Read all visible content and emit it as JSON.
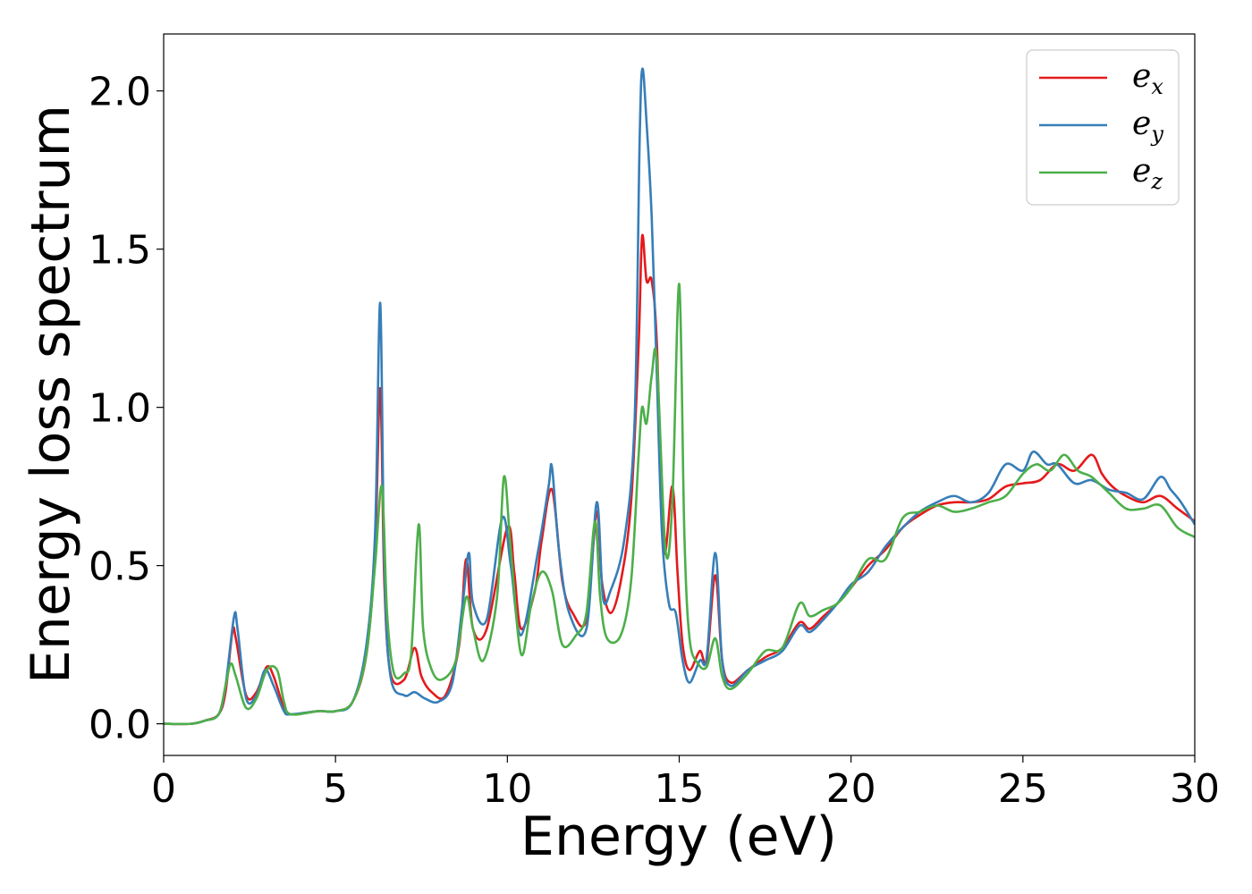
{
  "chart_data": {
    "type": "line",
    "xlabel": "Energy (eV)",
    "ylabel": "Energy loss spectrum",
    "xlim": [
      0,
      30
    ],
    "ylim": [
      -0.1,
      2.18
    ],
    "xticks": [
      0,
      5,
      10,
      15,
      20,
      25,
      30
    ],
    "xtick_labels": [
      "0",
      "5",
      "10",
      "15",
      "20",
      "25",
      "30"
    ],
    "yticks": [
      0.0,
      0.5,
      1.0,
      1.5,
      2.0
    ],
    "ytick_labels": [
      "0.0",
      "0.5",
      "1.0",
      "1.5",
      "2.0"
    ],
    "grid": false,
    "legend_position": "top-right",
    "series": [
      {
        "name": "e_x",
        "base": "e",
        "sub": "x",
        "color": "#e41a1c",
        "points": [
          [
            0,
            0
          ],
          [
            0.8,
            0
          ],
          [
            1.2,
            0.01
          ],
          [
            1.6,
            0.03
          ],
          [
            1.8,
            0.1
          ],
          [
            2.0,
            0.29
          ],
          [
            2.1,
            0.27
          ],
          [
            2.4,
            0.09
          ],
          [
            2.7,
            0.1
          ],
          [
            3.0,
            0.18
          ],
          [
            3.2,
            0.15
          ],
          [
            3.5,
            0.05
          ],
          [
            3.7,
            0.03
          ],
          [
            4.5,
            0.04
          ],
          [
            5.0,
            0.04
          ],
          [
            5.5,
            0.07
          ],
          [
            5.9,
            0.22
          ],
          [
            6.15,
            0.55
          ],
          [
            6.3,
            1.06
          ],
          [
            6.42,
            0.45
          ],
          [
            6.6,
            0.16
          ],
          [
            7.0,
            0.14
          ],
          [
            7.3,
            0.24
          ],
          [
            7.5,
            0.15
          ],
          [
            7.8,
            0.1
          ],
          [
            8.2,
            0.09
          ],
          [
            8.6,
            0.25
          ],
          [
            8.8,
            0.52
          ],
          [
            9.0,
            0.3
          ],
          [
            9.4,
            0.3
          ],
          [
            10.0,
            0.62
          ],
          [
            10.2,
            0.48
          ],
          [
            10.4,
            0.3
          ],
          [
            10.8,
            0.42
          ],
          [
            11.0,
            0.58
          ],
          [
            11.3,
            0.74
          ],
          [
            11.6,
            0.45
          ],
          [
            11.9,
            0.35
          ],
          [
            12.3,
            0.33
          ],
          [
            12.6,
            0.67
          ],
          [
            12.75,
            0.45
          ],
          [
            13.0,
            0.35
          ],
          [
            13.3,
            0.45
          ],
          [
            13.6,
            0.7
          ],
          [
            13.82,
            1.2
          ],
          [
            13.92,
            1.54
          ],
          [
            14.05,
            1.4
          ],
          [
            14.2,
            1.4
          ],
          [
            14.35,
            1.2
          ],
          [
            14.55,
            0.55
          ],
          [
            14.8,
            0.75
          ],
          [
            14.95,
            0.48
          ],
          [
            15.1,
            0.25
          ],
          [
            15.3,
            0.17
          ],
          [
            15.6,
            0.23
          ],
          [
            15.8,
            0.2
          ],
          [
            16.05,
            0.47
          ],
          [
            16.25,
            0.2
          ],
          [
            16.5,
            0.13
          ],
          [
            17.0,
            0.17
          ],
          [
            17.5,
            0.21
          ],
          [
            18.0,
            0.24
          ],
          [
            18.5,
            0.32
          ],
          [
            18.8,
            0.3
          ],
          [
            19.2,
            0.34
          ],
          [
            19.6,
            0.38
          ],
          [
            20.0,
            0.43
          ],
          [
            20.5,
            0.5
          ],
          [
            21.0,
            0.55
          ],
          [
            21.5,
            0.62
          ],
          [
            22.0,
            0.66
          ],
          [
            22.5,
            0.69
          ],
          [
            23.0,
            0.7
          ],
          [
            23.5,
            0.7
          ],
          [
            24.0,
            0.71
          ],
          [
            24.5,
            0.75
          ],
          [
            25.0,
            0.76
          ],
          [
            25.5,
            0.77
          ],
          [
            26.0,
            0.82
          ],
          [
            26.5,
            0.8
          ],
          [
            27.0,
            0.85
          ],
          [
            27.3,
            0.79
          ],
          [
            27.6,
            0.75
          ],
          [
            28.0,
            0.72
          ],
          [
            28.5,
            0.7
          ],
          [
            29.0,
            0.72
          ],
          [
            29.5,
            0.68
          ],
          [
            30.0,
            0.64
          ]
        ]
      },
      {
        "name": "e_y",
        "base": "e",
        "sub": "y",
        "color": "#377eb8",
        "points": [
          [
            0,
            0
          ],
          [
            0.8,
            0
          ],
          [
            1.2,
            0.01
          ],
          [
            1.6,
            0.03
          ],
          [
            1.8,
            0.12
          ],
          [
            2.05,
            0.34
          ],
          [
            2.15,
            0.3
          ],
          [
            2.4,
            0.08
          ],
          [
            2.7,
            0.09
          ],
          [
            2.95,
            0.17
          ],
          [
            3.2,
            0.12
          ],
          [
            3.5,
            0.04
          ],
          [
            3.7,
            0.03
          ],
          [
            4.5,
            0.04
          ],
          [
            5.0,
            0.04
          ],
          [
            5.5,
            0.07
          ],
          [
            5.9,
            0.25
          ],
          [
            6.15,
            0.6
          ],
          [
            6.3,
            1.33
          ],
          [
            6.42,
            0.5
          ],
          [
            6.6,
            0.15
          ],
          [
            7.0,
            0.09
          ],
          [
            7.3,
            0.1
          ],
          [
            7.6,
            0.08
          ],
          [
            8.0,
            0.07
          ],
          [
            8.4,
            0.13
          ],
          [
            8.7,
            0.38
          ],
          [
            8.88,
            0.54
          ],
          [
            9.0,
            0.38
          ],
          [
            9.4,
            0.33
          ],
          [
            9.85,
            0.65
          ],
          [
            10.1,
            0.5
          ],
          [
            10.4,
            0.28
          ],
          [
            10.9,
            0.55
          ],
          [
            11.2,
            0.75
          ],
          [
            11.3,
            0.81
          ],
          [
            11.5,
            0.55
          ],
          [
            11.8,
            0.35
          ],
          [
            12.3,
            0.3
          ],
          [
            12.6,
            0.7
          ],
          [
            12.78,
            0.4
          ],
          [
            13.0,
            0.42
          ],
          [
            13.4,
            0.58
          ],
          [
            13.7,
            0.95
          ],
          [
            13.85,
            1.85
          ],
          [
            13.93,
            2.07
          ],
          [
            14.05,
            1.9
          ],
          [
            14.2,
            1.6
          ],
          [
            14.35,
            1.1
          ],
          [
            14.5,
            0.6
          ],
          [
            14.7,
            0.38
          ],
          [
            14.9,
            0.35
          ],
          [
            15.1,
            0.2
          ],
          [
            15.3,
            0.13
          ],
          [
            15.6,
            0.2
          ],
          [
            15.8,
            0.21
          ],
          [
            16.05,
            0.54
          ],
          [
            16.25,
            0.2
          ],
          [
            16.5,
            0.12
          ],
          [
            17.0,
            0.17
          ],
          [
            17.5,
            0.2
          ],
          [
            18.0,
            0.23
          ],
          [
            18.5,
            0.31
          ],
          [
            18.8,
            0.29
          ],
          [
            19.2,
            0.33
          ],
          [
            19.6,
            0.38
          ],
          [
            20.0,
            0.44
          ],
          [
            20.5,
            0.48
          ],
          [
            21.0,
            0.56
          ],
          [
            21.5,
            0.62
          ],
          [
            22.0,
            0.67
          ],
          [
            22.5,
            0.7
          ],
          [
            23.0,
            0.72
          ],
          [
            23.5,
            0.7
          ],
          [
            24.0,
            0.73
          ],
          [
            24.5,
            0.82
          ],
          [
            25.0,
            0.8
          ],
          [
            25.3,
            0.86
          ],
          [
            25.7,
            0.82
          ],
          [
            26.0,
            0.82
          ],
          [
            26.5,
            0.76
          ],
          [
            27.0,
            0.77
          ],
          [
            27.5,
            0.74
          ],
          [
            28.0,
            0.73
          ],
          [
            28.5,
            0.71
          ],
          [
            29.0,
            0.78
          ],
          [
            29.3,
            0.74
          ],
          [
            29.6,
            0.7
          ],
          [
            30.0,
            0.63
          ]
        ]
      },
      {
        "name": "e_z",
        "base": "e",
        "sub": "z",
        "color": "#4daf4a",
        "points": [
          [
            0,
            0
          ],
          [
            0.8,
            0
          ],
          [
            1.2,
            0.01
          ],
          [
            1.6,
            0.03
          ],
          [
            1.8,
            0.12
          ],
          [
            1.95,
            0.19
          ],
          [
            2.1,
            0.15
          ],
          [
            2.4,
            0.05
          ],
          [
            2.7,
            0.08
          ],
          [
            3.0,
            0.17
          ],
          [
            3.3,
            0.17
          ],
          [
            3.5,
            0.07
          ],
          [
            3.7,
            0.03
          ],
          [
            4.5,
            0.04
          ],
          [
            5.0,
            0.04
          ],
          [
            5.5,
            0.07
          ],
          [
            5.9,
            0.22
          ],
          [
            6.15,
            0.5
          ],
          [
            6.35,
            0.75
          ],
          [
            6.5,
            0.35
          ],
          [
            6.7,
            0.16
          ],
          [
            7.0,
            0.16
          ],
          [
            7.2,
            0.22
          ],
          [
            7.42,
            0.63
          ],
          [
            7.55,
            0.3
          ],
          [
            7.8,
            0.17
          ],
          [
            8.1,
            0.14
          ],
          [
            8.5,
            0.2
          ],
          [
            8.8,
            0.4
          ],
          [
            9.0,
            0.3
          ],
          [
            9.3,
            0.2
          ],
          [
            9.7,
            0.4
          ],
          [
            9.9,
            0.78
          ],
          [
            10.1,
            0.55
          ],
          [
            10.4,
            0.22
          ],
          [
            10.7,
            0.38
          ],
          [
            11.0,
            0.48
          ],
          [
            11.3,
            0.42
          ],
          [
            11.6,
            0.25
          ],
          [
            12.0,
            0.28
          ],
          [
            12.3,
            0.35
          ],
          [
            12.55,
            0.64
          ],
          [
            12.7,
            0.4
          ],
          [
            12.9,
            0.27
          ],
          [
            13.3,
            0.28
          ],
          [
            13.6,
            0.45
          ],
          [
            13.82,
            0.85
          ],
          [
            13.92,
            1.0
          ],
          [
            14.05,
            0.95
          ],
          [
            14.2,
            1.1
          ],
          [
            14.35,
            1.15
          ],
          [
            14.6,
            0.55
          ],
          [
            14.8,
            0.7
          ],
          [
            15.0,
            1.39
          ],
          [
            15.15,
            0.6
          ],
          [
            15.3,
            0.27
          ],
          [
            15.55,
            0.19
          ],
          [
            15.8,
            0.18
          ],
          [
            16.05,
            0.27
          ],
          [
            16.25,
            0.15
          ],
          [
            16.5,
            0.11
          ],
          [
            17.0,
            0.16
          ],
          [
            17.5,
            0.23
          ],
          [
            18.0,
            0.24
          ],
          [
            18.5,
            0.38
          ],
          [
            18.8,
            0.34
          ],
          [
            19.2,
            0.36
          ],
          [
            19.6,
            0.38
          ],
          [
            20.0,
            0.43
          ],
          [
            20.5,
            0.52
          ],
          [
            21.0,
            0.52
          ],
          [
            21.5,
            0.65
          ],
          [
            22.0,
            0.67
          ],
          [
            22.5,
            0.69
          ],
          [
            23.0,
            0.67
          ],
          [
            23.5,
            0.68
          ],
          [
            24.0,
            0.7
          ],
          [
            24.5,
            0.72
          ],
          [
            25.0,
            0.79
          ],
          [
            25.4,
            0.82
          ],
          [
            25.8,
            0.8
          ],
          [
            26.2,
            0.85
          ],
          [
            26.6,
            0.8
          ],
          [
            27.0,
            0.78
          ],
          [
            27.5,
            0.73
          ],
          [
            28.0,
            0.68
          ],
          [
            28.5,
            0.68
          ],
          [
            29.0,
            0.69
          ],
          [
            29.5,
            0.62
          ],
          [
            30.0,
            0.59
          ]
        ]
      }
    ]
  }
}
